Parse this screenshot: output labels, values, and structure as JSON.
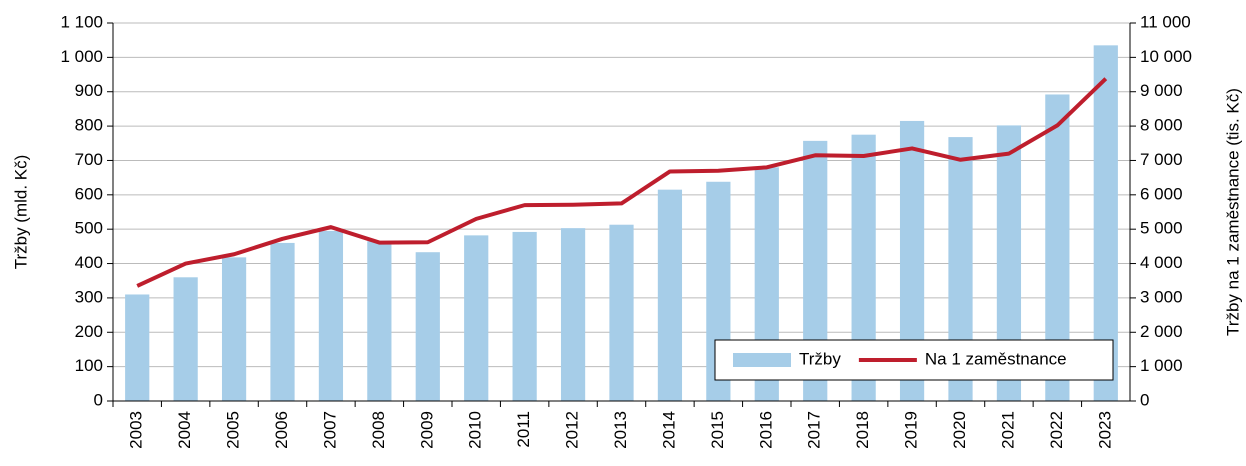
{
  "chart_data": {
    "type": "bar_line",
    "categories": [
      "2003",
      "2004",
      "2005",
      "2006",
      "2007",
      "2008",
      "2009",
      "2010",
      "2011",
      "2012",
      "2013",
      "2014",
      "2015",
      "2016",
      "2017",
      "2018",
      "2019",
      "2020",
      "2021",
      "2022",
      "2023"
    ],
    "series": [
      {
        "name": "Tržby",
        "type": "bar",
        "color": "#a6cde8",
        "axis": "y",
        "values": [
          310,
          360,
          418,
          460,
          495,
          465,
          433,
          482,
          492,
          503,
          513,
          615,
          638,
          680,
          757,
          775,
          815,
          768,
          802,
          892,
          1035
        ]
      },
      {
        "name": "Na 1 zaměstnance",
        "type": "line",
        "color": "#be1e2d",
        "axis": "y2",
        "values": [
          3350,
          4000,
          4270,
          4720,
          5060,
          4610,
          4620,
          5300,
          5700,
          5710,
          5750,
          6680,
          6700,
          6800,
          7150,
          7130,
          7350,
          7020,
          7200,
          8020,
          9380
        ]
      }
    ],
    "ylabel": "Tržby (mld. Kč)",
    "y2label": "Tržby na 1 zaměstnance (tis. Kč)",
    "ylim": [
      0,
      1100
    ],
    "yticks": [
      0,
      100,
      200,
      300,
      400,
      500,
      600,
      700,
      800,
      900,
      {
        "value": 1000,
        "label": "1 000"
      },
      {
        "value": 1100,
        "label": "1 100"
      }
    ],
    "y2lim": [
      0,
      11000
    ],
    "y2ticks": [
      0,
      {
        "value": 1000,
        "label": "1 000"
      },
      {
        "value": 2000,
        "label": "2 000"
      },
      {
        "value": 3000,
        "label": "3 000"
      },
      {
        "value": 4000,
        "label": "4 000"
      },
      {
        "value": 5000,
        "label": "5 000"
      },
      {
        "value": 6000,
        "label": "6 000"
      },
      {
        "value": 7000,
        "label": "7 000"
      },
      {
        "value": 8000,
        "label": "8 000"
      },
      {
        "value": 9000,
        "label": "9 000"
      },
      {
        "value": 10000,
        "label": "10 000"
      },
      {
        "value": 11000,
        "label": "11 000"
      }
    ],
    "grid": true,
    "legend": "lower right"
  }
}
